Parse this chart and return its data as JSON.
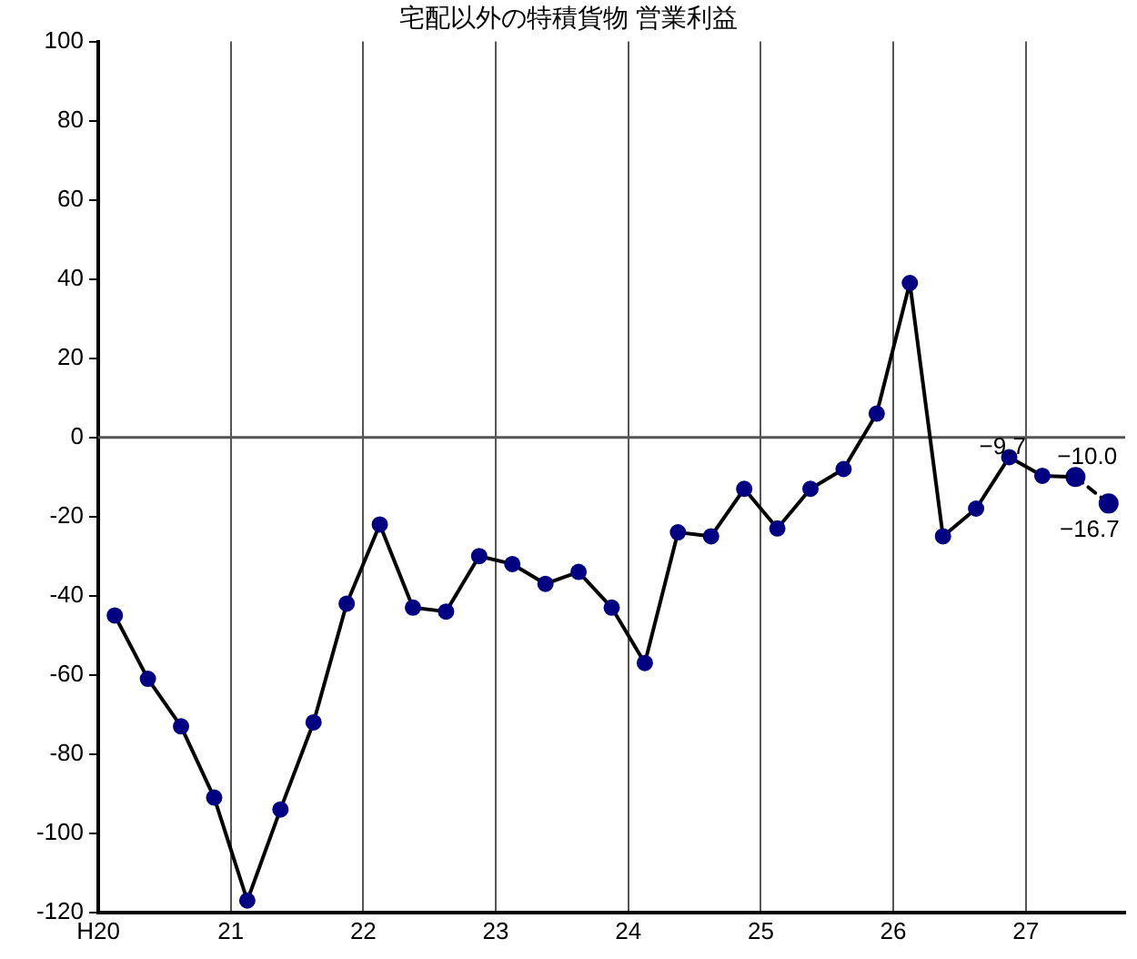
{
  "chart_data": {
    "type": "line",
    "title": "宅配以外の特積貨物 営業利益",
    "x": [
      20.125,
      20.375,
      20.625,
      20.875,
      21.125,
      21.375,
      21.625,
      21.875,
      22.125,
      22.375,
      22.625,
      22.875,
      23.125,
      23.375,
      23.625,
      23.875,
      24.125,
      24.375,
      24.625,
      24.875,
      25.125,
      25.375,
      25.625,
      25.875,
      26.125,
      26.375,
      26.625,
      26.875,
      27.125,
      27.375,
      27.625
    ],
    "series": [
      {
        "color": "#000080",
        "line_style": "solid",
        "values": [
          -45,
          -61,
          -73,
          -91,
          -117,
          -94,
          -72,
          -42,
          -22,
          -43,
          -44,
          -30,
          -32,
          -37,
          -34,
          -43,
          -57,
          -24,
          -25,
          -13,
          -23,
          -13,
          -8,
          6,
          39,
          -25,
          -18,
          -5,
          -9.7,
          -10.0,
          null
        ],
        "value_labels": [
          null,
          null,
          null,
          null,
          null,
          null,
          null,
          null,
          null,
          null,
          null,
          null,
          null,
          null,
          null,
          null,
          null,
          null,
          null,
          null,
          null,
          null,
          null,
          null,
          null,
          null,
          null,
          null,
          "−9.7",
          "−10.0",
          null
        ]
      },
      {
        "color": "#000080",
        "line_style": "dashed",
        "values": [
          null,
          null,
          null,
          null,
          null,
          null,
          null,
          null,
          null,
          null,
          null,
          null,
          null,
          null,
          null,
          null,
          null,
          null,
          null,
          null,
          null,
          null,
          null,
          null,
          null,
          null,
          null,
          null,
          null,
          -10.0,
          -16.7
        ],
        "value_labels": [
          null,
          null,
          null,
          null,
          null,
          null,
          null,
          null,
          null,
          null,
          null,
          null,
          null,
          null,
          null,
          null,
          null,
          null,
          null,
          null,
          null,
          null,
          null,
          null,
          null,
          null,
          null,
          null,
          null,
          null,
          "−16.7"
        ]
      }
    ],
    "xlim": [
      20,
      27.75
    ],
    "xticks": [
      {
        "value": 20,
        "label": "H20"
      },
      {
        "value": 21,
        "label": "21"
      },
      {
        "value": 22,
        "label": "22"
      },
      {
        "value": 23,
        "label": "23"
      },
      {
        "value": 24,
        "label": "24"
      },
      {
        "value": 25,
        "label": "25"
      },
      {
        "value": 26,
        "label": "26"
      },
      {
        "value": 27,
        "label": "27"
      }
    ],
    "ylim": [
      -120,
      100
    ],
    "yticks": [
      -120,
      -100,
      -80,
      -60,
      -40,
      -20,
      0,
      20,
      40,
      60,
      80,
      100
    ],
    "ref_lines": [
      {
        "axis": "y",
        "value": 0
      }
    ],
    "grid": "x",
    "legend": false,
    "marker": "circle"
  }
}
